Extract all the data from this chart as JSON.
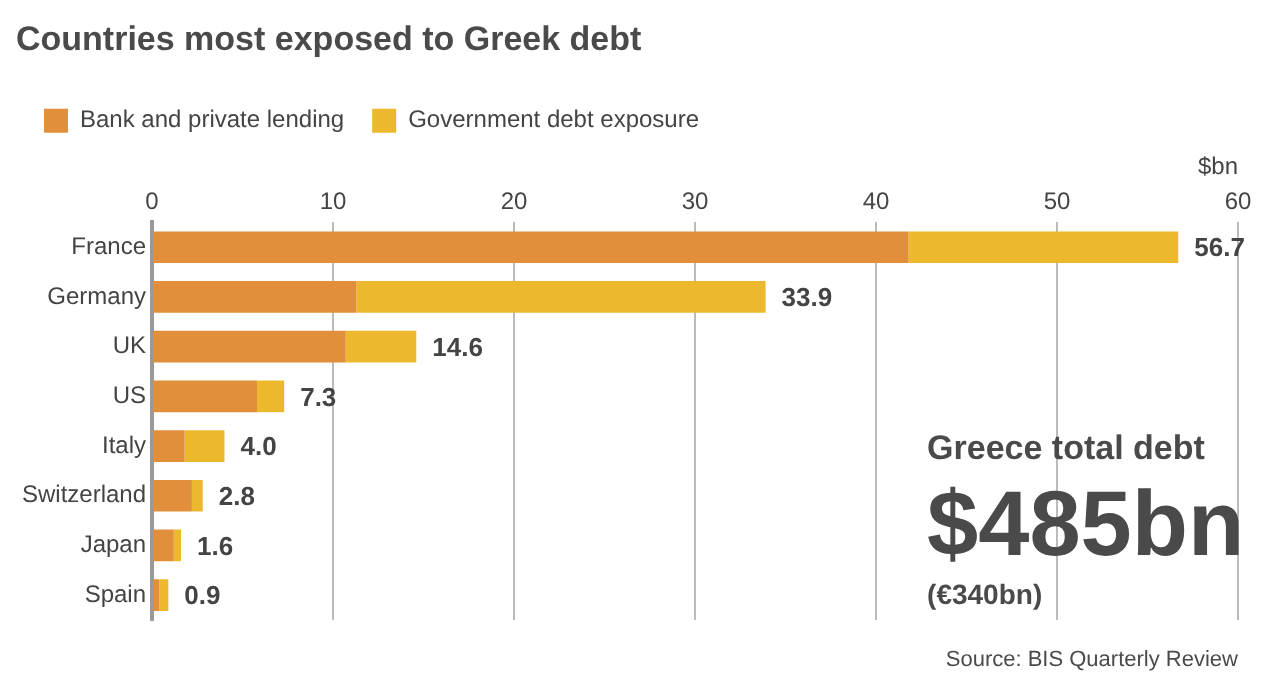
{
  "chart_data": {
    "type": "bar",
    "orientation": "horizontal",
    "stacked": true,
    "title": "Countries most exposed to Greek debt",
    "xlabel": "$bn",
    "categories": [
      "France",
      "Germany",
      "UK",
      "US",
      "Italy",
      "Switzerland",
      "Japan",
      "Spain"
    ],
    "series": [
      {
        "name": "Bank and private lending",
        "color": "#e28f3c",
        "values": [
          41.8,
          11.3,
          10.7,
          5.8,
          1.8,
          2.2,
          1.2,
          0.4
        ]
      },
      {
        "name": "Government debt exposure",
        "color": "#ecb92e",
        "values": [
          14.9,
          22.6,
          3.9,
          1.5,
          2.2,
          0.6,
          0.4,
          0.5
        ]
      }
    ],
    "totals": [
      "56.7",
      "33.9",
      "14.6",
      "7.3",
      "4.0",
      "2.8",
      "1.6",
      "0.9"
    ],
    "xlim": [
      0,
      60
    ],
    "xticks": [
      0,
      10,
      20,
      30,
      40,
      50,
      60
    ],
    "grid": "x",
    "legend": "top left",
    "annotations": [
      "Greece total debt",
      "$485bn",
      "(€340bn)",
      "Source: BIS Quarterly Review"
    ]
  }
}
